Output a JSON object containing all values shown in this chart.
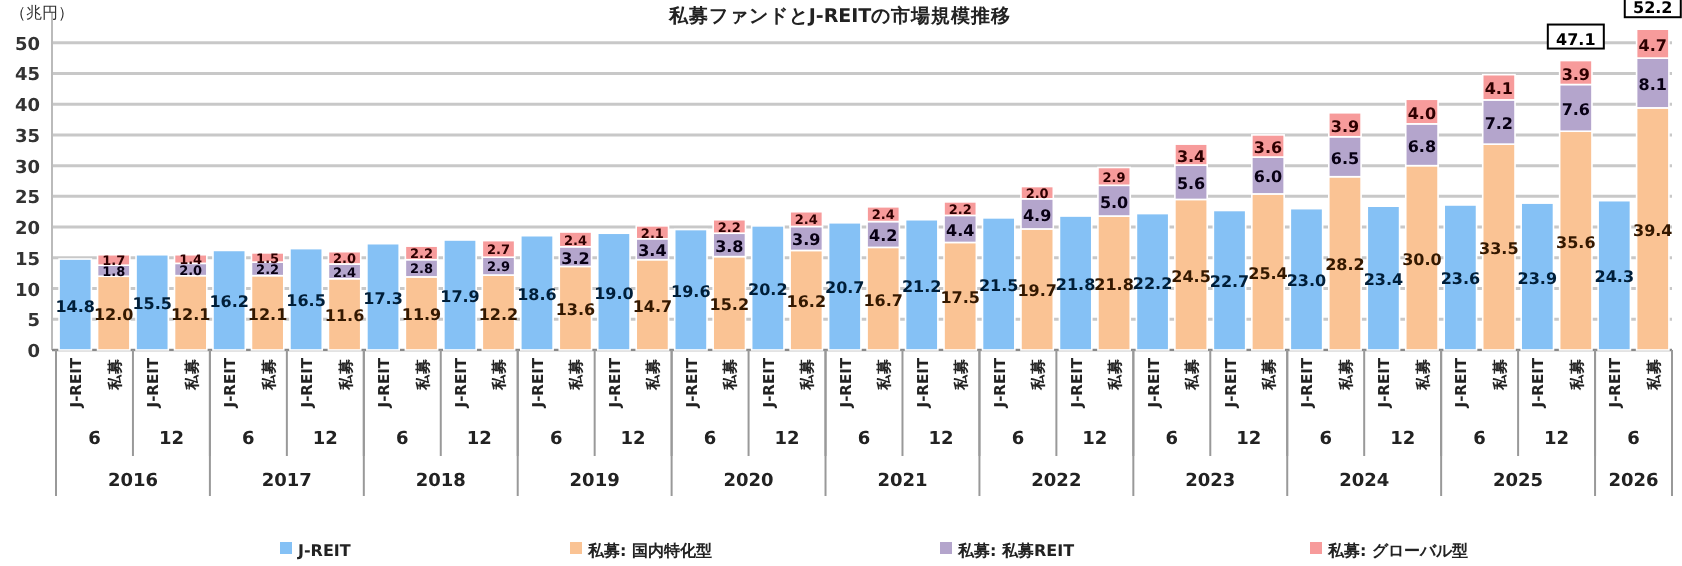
{
  "chart_data": {
    "type": "bar",
    "title": "私募ファンドとJ-REITの市場規模推移",
    "ylabel": "（兆円）",
    "categories": [
      "J-REIT",
      "私募",
      "J-REIT",
      "私募",
      "J-REIT",
      "私募",
      "J-REIT",
      "私募",
      "J-REIT",
      "私募",
      "J-REIT",
      "私募",
      "J-REIT",
      "私募",
      "J-REIT",
      "私募",
      "J-REIT",
      "私募",
      "J-REIT",
      "私募",
      "J-REIT",
      "私募",
      "J-REIT",
      "私募",
      "J-REIT",
      "私募",
      "J-REIT",
      "私募",
      "J-REIT",
      "私募",
      "J-REIT",
      "私募",
      "J-REIT",
      "私募",
      "J-REIT",
      "私募",
      "J-REIT",
      "私募",
      "J-REIT",
      "私募",
      "J-REIT",
      "私募"
    ],
    "annotations": [
      "6",
      "12",
      "6",
      "12",
      "6",
      "12",
      "6",
      "12",
      "6",
      "12",
      "6",
      "12",
      "6",
      "12",
      "6",
      "12",
      "6",
      "12",
      "6",
      "12",
      "6",
      "2016",
      "2017",
      "2018",
      "2019",
      "2020",
      "2021",
      "2022",
      "2023",
      "2024",
      "2025",
      "2026"
    ],
    "stacked": true,
    "grid": "y",
    "legend": "bottom",
    "ylim": [
      0,
      55
    ],
    "yticks": [
      0,
      5,
      10,
      15,
      20,
      25,
      30,
      35,
      40,
      45,
      50
    ],
    "series": [
      {
        "name": "J-REIT",
        "color": "#85c1f5",
        "values": [
          14.8,
          null,
          15.5,
          null,
          16.2,
          null,
          16.5,
          null,
          17.3,
          null,
          17.9,
          null,
          18.6,
          null,
          19.0,
          null,
          19.6,
          null,
          20.2,
          null,
          20.7,
          null,
          21.2,
          null,
          21.5,
          null,
          21.8,
          null,
          22.2,
          null,
          22.7,
          null,
          23.0,
          null,
          23.4,
          null,
          23.6,
          null,
          23.9,
          null,
          24.3,
          null
        ],
        "value_labels": [
          "14.8",
          null,
          "15.5",
          null,
          "16.2",
          null,
          "16.5",
          null,
          "17.3",
          null,
          "17.9",
          null,
          "18.6",
          null,
          "19.0",
          null,
          "19.6",
          null,
          "20.2",
          null,
          "20.7",
          null,
          "21.2",
          null,
          "21.5",
          null,
          "21.8",
          null,
          "22.2",
          null,
          "22.7",
          null,
          "23.0",
          null,
          "23.4",
          null,
          "23.6",
          null,
          "23.9",
          null,
          "24.3",
          null
        ]
      },
      {
        "name": "私募: 国内特化型",
        "color": "#fac394",
        "values": [
          null,
          12.0,
          null,
          12.1,
          null,
          12.1,
          null,
          11.6,
          null,
          11.9,
          null,
          12.2,
          null,
          13.6,
          null,
          14.7,
          null,
          15.2,
          null,
          16.2,
          null,
          16.7,
          null,
          17.5,
          null,
          19.7,
          null,
          21.8,
          null,
          24.5,
          null,
          25.4,
          null,
          28.2,
          null,
          30.0,
          null,
          33.5,
          null,
          35.6,
          null,
          39.4
        ],
        "value_labels": [
          null,
          "12.0",
          null,
          "12.1",
          null,
          "12.1",
          null,
          "11.6",
          null,
          "11.9",
          null,
          "12.2",
          null,
          "13.6",
          null,
          "14.7",
          null,
          "15.2",
          null,
          "16.2",
          null,
          "16.7",
          null,
          "17.5",
          null,
          "19.7",
          null,
          "21.8",
          null,
          "24.5",
          null,
          "25.4",
          null,
          "28.2",
          null,
          "30.0",
          null,
          "33.5",
          null,
          "35.6",
          null,
          "39.4"
        ]
      },
      {
        "name": "私募: 私募REIT",
        "color": "#b4a5cc",
        "values": [
          null,
          1.8,
          null,
          2.0,
          null,
          2.2,
          null,
          2.4,
          null,
          2.8,
          null,
          2.9,
          null,
          3.2,
          null,
          3.4,
          null,
          3.8,
          null,
          3.9,
          null,
          4.2,
          null,
          4.4,
          null,
          4.9,
          null,
          5.0,
          null,
          5.6,
          null,
          6.0,
          null,
          6.5,
          null,
          6.8,
          null,
          7.2,
          null,
          7.6,
          null,
          8.1
        ],
        "value_labels": [
          null,
          "1.8",
          null,
          "2.0",
          null,
          "2.2",
          null,
          "2.4",
          null,
          "2.8",
          null,
          "2.9",
          null,
          "3.2",
          null,
          "3.4",
          null,
          "3.8",
          null,
          "3.9",
          null,
          "4.2",
          null,
          "4.4",
          null,
          "4.9",
          null,
          "5.0",
          null,
          "5.6",
          null,
          "6.0",
          null,
          "6.5",
          null,
          "6.8",
          null,
          "7.2",
          null,
          "7.6",
          null,
          "8.1"
        ]
      },
      {
        "name": "私募: グローバル型",
        "color": "#f79b9b",
        "values": [
          null,
          1.7,
          null,
          1.4,
          null,
          1.5,
          null,
          2.0,
          null,
          2.2,
          null,
          2.7,
          null,
          2.4,
          null,
          2.1,
          null,
          2.2,
          null,
          2.4,
          null,
          2.4,
          null,
          2.2,
          null,
          2.0,
          null,
          2.9,
          null,
          3.4,
          null,
          3.6,
          null,
          3.9,
          null,
          4.0,
          null,
          4.1,
          null,
          3.9,
          null,
          4.7
        ],
        "value_labels": [
          null,
          "1.7",
          null,
          "1.4",
          null,
          "1.5",
          null,
          "2.0",
          null,
          "2.2",
          null,
          "2.7",
          null,
          "2.4",
          null,
          "2.1",
          null,
          "2.2",
          null,
          "2.4",
          null,
          "2.4",
          null,
          "2.2",
          null,
          "2.0",
          null,
          "2.9",
          null,
          "3.4",
          null,
          "3.6",
          null,
          "3.9",
          null,
          "4.0",
          null,
          "4.1",
          null,
          "3.9",
          null,
          "4.7"
        ]
      }
    ],
    "totals": [
      null,
      null,
      null,
      null,
      null,
      null,
      null,
      null,
      null,
      null,
      null,
      null,
      null,
      null,
      null,
      null,
      null,
      null,
      null,
      null,
      null,
      null,
      null,
      null,
      null,
      null,
      null,
      null,
      null,
      null,
      null,
      null,
      null,
      null,
      null,
      null,
      null,
      null,
      null,
      "47.1",
      null,
      "52.2"
    ]
  }
}
